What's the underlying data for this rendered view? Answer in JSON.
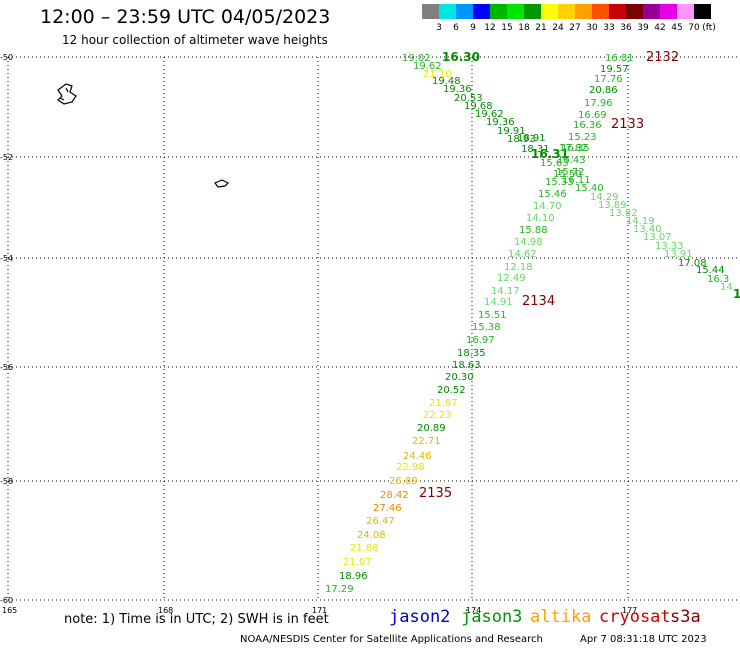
{
  "title": "12:00 – 23:59 UTC 04/05/2023",
  "subtitle": "12 hour collection of altimeter wave heights",
  "color_scale": {
    "unit_label": "(ft)",
    "bins": [
      {
        "color": "#808080",
        "label": "3"
      },
      {
        "color": "#00e5e5",
        "label": "6"
      },
      {
        "color": "#0096ff",
        "label": "9"
      },
      {
        "color": "#0000ff",
        "label": "12"
      },
      {
        "color": "#00b400",
        "label": "15"
      },
      {
        "color": "#00e600",
        "label": "18"
      },
      {
        "color": "#009600",
        "label": "21"
      },
      {
        "color": "#ffff00",
        "label": "24"
      },
      {
        "color": "#ffd200",
        "label": "27"
      },
      {
        "color": "#ffa000",
        "label": "30"
      },
      {
        "color": "#ff5000",
        "label": "33"
      },
      {
        "color": "#c80000",
        "label": "36"
      },
      {
        "color": "#780000",
        "label": "39"
      },
      {
        "color": "#960096",
        "label": "42"
      },
      {
        "color": "#e600e6",
        "label": "45"
      },
      {
        "color": "#ff96ff",
        "label": "70"
      },
      {
        "color": "#000000",
        "label": ""
      }
    ]
  },
  "axes": {
    "lon_labels": [
      "165",
      "168",
      "171",
      "174",
      "177"
    ],
    "lat_labels": [
      "-50",
      "-52",
      "-54",
      "-56",
      "-58",
      "-60"
    ]
  },
  "colors": {
    "dark_green": "#008c00",
    "green": "#22b522",
    "light_green": "#66d566",
    "yellow": "#e6e600",
    "gold": "#e6b400",
    "orange": "#e68c00",
    "time_label": "#800000"
  },
  "tracks": [
    {
      "id": "track-nw-se",
      "points": [
        {
          "v": "16.30",
          "t": "dark_green",
          "big": true
        },
        {
          "v": "19.02",
          "t": "green"
        },
        {
          "v": "19.62",
          "t": "green"
        },
        {
          "v": "21.10",
          "t": "yellow"
        },
        {
          "v": "19.48",
          "t": "dark_green"
        },
        {
          "v": "19.36",
          "t": "dark_green"
        },
        {
          "v": "20.53",
          "t": "dark_green"
        },
        {
          "v": "19.68",
          "t": "dark_green"
        },
        {
          "v": "19.62",
          "t": "dark_green"
        },
        {
          "v": "19.36",
          "t": "dark_green"
        },
        {
          "v": "19.91",
          "t": "dark_green"
        },
        {
          "v": "18.93",
          "t": "dark_green"
        },
        {
          "v": "18.91",
          "t": "dark_green"
        },
        {
          "v": "18.31",
          "t": "dark_green"
        },
        {
          "v": "16.31",
          "t": "dark_green",
          "big": true
        },
        {
          "v": "17.82",
          "t": "green"
        },
        {
          "v": "15.63",
          "t": "green"
        },
        {
          "v": "16.11",
          "t": "green"
        },
        {
          "v": "15.40",
          "t": "green"
        },
        {
          "v": "14.29",
          "t": "light_green"
        },
        {
          "v": "13.89",
          "t": "light_green"
        },
        {
          "v": "13.82",
          "t": "light_green"
        },
        {
          "v": "14.19",
          "t": "light_green"
        },
        {
          "v": "13.40",
          "t": "light_green"
        },
        {
          "v": "13.07",
          "t": "light_green"
        },
        {
          "v": "13.33",
          "t": "light_green"
        },
        {
          "v": "13.91",
          "t": "light_green"
        },
        {
          "v": "17.08",
          "t": "dark_green"
        },
        {
          "v": "15.44",
          "t": "dark_green"
        },
        {
          "v": "16.3",
          "t": "green"
        },
        {
          "v": "14",
          "t": "light_green"
        },
        {
          "v": "1",
          "t": "dark_green",
          "big": true
        }
      ]
    },
    {
      "id": "track-ne-sw",
      "points": [
        {
          "v": "16.81",
          "t": "green"
        },
        {
          "v": "19.57",
          "t": "dark_green"
        },
        {
          "v": "17.76",
          "t": "green"
        },
        {
          "v": "20.86",
          "t": "dark_green"
        },
        {
          "v": "17.96",
          "t": "green"
        },
        {
          "v": "16.69",
          "t": "green"
        },
        {
          "v": "16.36",
          "t": "green"
        },
        {
          "v": "15.23",
          "t": "green"
        },
        {
          "v": "16.35",
          "t": "green"
        },
        {
          "v": "16.43",
          "t": "green"
        },
        {
          "v": "15.72",
          "t": "green"
        },
        {
          "v": "15.50",
          "t": "green"
        },
        {
          "v": "15.33",
          "t": "green"
        },
        {
          "v": "15.46",
          "t": "green"
        },
        {
          "v": "14.70",
          "t": "light_green"
        },
        {
          "v": "14.10",
          "t": "light_green"
        },
        {
          "v": "15.88",
          "t": "green"
        },
        {
          "v": "14.98",
          "t": "light_green"
        },
        {
          "v": "14.62",
          "t": "light_green"
        },
        {
          "v": "12.18",
          "t": "light_green"
        },
        {
          "v": "12.49",
          "t": "light_green"
        },
        {
          "v": "14.17",
          "t": "light_green"
        },
        {
          "v": "14.91",
          "t": "light_green"
        },
        {
          "v": "15.51",
          "t": "green"
        },
        {
          "v": "15.38",
          "t": "green"
        },
        {
          "v": "16.97",
          "t": "green"
        },
        {
          "v": "18.35",
          "t": "dark_green"
        },
        {
          "v": "18.63",
          "t": "dark_green"
        },
        {
          "v": "20.30",
          "t": "dark_green"
        },
        {
          "v": "20.52",
          "t": "dark_green"
        },
        {
          "v": "21.87",
          "t": "yellow"
        },
        {
          "v": "22.23",
          "t": "yellow"
        },
        {
          "v": "20.89",
          "t": "dark_green"
        },
        {
          "v": "22.71",
          "t": "gold"
        },
        {
          "v": "24.46",
          "t": "gold"
        },
        {
          "v": "22.98",
          "t": "yellow"
        },
        {
          "v": "26.89",
          "t": "gold"
        },
        {
          "v": "28.42",
          "t": "orange"
        },
        {
          "v": "27.46",
          "t": "orange"
        },
        {
          "v": "26.47",
          "t": "gold"
        },
        {
          "v": "24.08",
          "t": "gold"
        },
        {
          "v": "21.86",
          "t": "yellow"
        },
        {
          "v": "21.07",
          "t": "yellow"
        },
        {
          "v": "18.96",
          "t": "dark_green"
        },
        {
          "v": "17.29",
          "t": "green"
        }
      ]
    }
  ],
  "time_labels": [
    "2132",
    "2133",
    "2134",
    "2135"
  ],
  "note": "note: 1) Time is in UTC; 2) SWH is in feet",
  "missions": [
    {
      "name": "jason2",
      "color": "#0000d0"
    },
    {
      "name": "jason3",
      "color": "#009600"
    },
    {
      "name": "altika",
      "color": "#ffa000"
    },
    {
      "name": "cryosat",
      "color": "#d00000"
    },
    {
      "name": "s3a",
      "color": "#800000"
    }
  ],
  "credit": "NOAA/NESDIS Center for Satellite Applications and Research",
  "timestamp": "Apr  7 08:31:18 UTC 2023"
}
